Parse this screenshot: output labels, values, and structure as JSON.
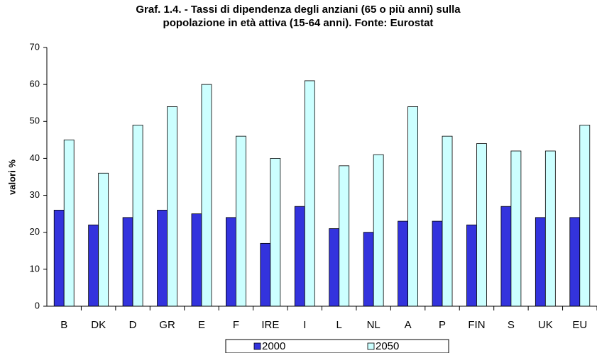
{
  "chart_data": {
    "type": "bar",
    "title": [
      "Graf. 1.4. - Tassi di dipendenza degli anziani (65 o più anni) sulla",
      "popolazione in età attiva (15-64 anni).  Fonte: Eurostat"
    ],
    "y_label": "valori %",
    "categories": [
      "B",
      "DK",
      "D",
      "GR",
      "E",
      "F",
      "IRE",
      "I",
      "L",
      "NL",
      "A",
      "P",
      "FIN",
      "S",
      "UK",
      "EU"
    ],
    "series": [
      {
        "name": "2000",
        "color": "#3333dd",
        "values": [
          26,
          22,
          24,
          26,
          25,
          24,
          17,
          27,
          21,
          20,
          23,
          23,
          22,
          27,
          24,
          24
        ]
      },
      {
        "name": "2050",
        "color": "#ccffff",
        "values": [
          45,
          36,
          49,
          54,
          60,
          46,
          40,
          61,
          38,
          41,
          54,
          46,
          44,
          42,
          42,
          49
        ]
      }
    ],
    "ylim": [
      0,
      70
    ],
    "yticks": [
      0,
      10,
      20,
      30,
      40,
      50,
      60,
      70
    ],
    "grid": false,
    "legend": "bottom"
  }
}
